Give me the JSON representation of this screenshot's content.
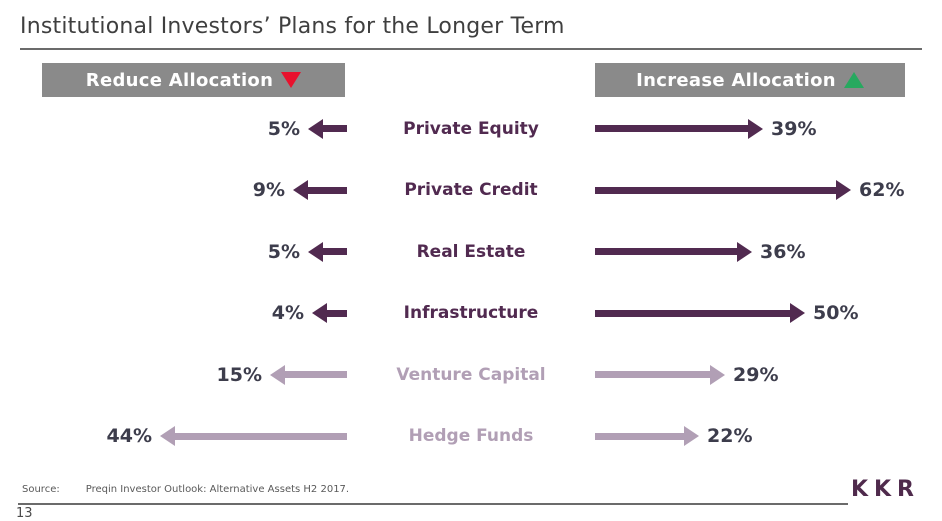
{
  "title": "Institutional Investors’ Plans for the Longer Term",
  "headers": {
    "reduce_label": "Reduce Allocation",
    "increase_label": "Increase Allocation",
    "reduce_icon": "red-down-triangle",
    "increase_icon": "green-up-triangle"
  },
  "chart_data": {
    "type": "diverging-arrows",
    "title": "Institutional Investors’ Plans for the Longer Term",
    "categories": [
      "Private Equity",
      "Private Credit",
      "Real Estate",
      "Infrastructure",
      "Venture Capital",
      "Hedge Funds"
    ],
    "series": [
      {
        "name": "Reduce Allocation",
        "direction": "left",
        "values": [
          5,
          9,
          5,
          4,
          15,
          44
        ]
      },
      {
        "name": "Increase Allocation",
        "direction": "right",
        "values": [
          39,
          62,
          36,
          50,
          29,
          22
        ]
      }
    ],
    "value_suffix": "%",
    "emphasis": [
      "dark",
      "dark",
      "dark",
      "dark",
      "light",
      "light"
    ],
    "legend_position": "top",
    "grid": false
  },
  "colors": {
    "dark_purple": "#512a50",
    "light_mauve": "#b19fb5",
    "header_gray": "#8a8a8a",
    "header_text": "#ffffff",
    "reduce_triangle_red": "#e8112d",
    "increase_triangle_green": "#27a95f",
    "percent_text": "#3d3d4c",
    "title_text": "#3f3f3f",
    "rule_gray": "#6b6b6b"
  },
  "footer": {
    "source_label": "Source:",
    "source_text": "Preqin Investor Outlook: Alternative Assets H2 2017.",
    "page_number": "13",
    "logo_text": "KKR"
  }
}
